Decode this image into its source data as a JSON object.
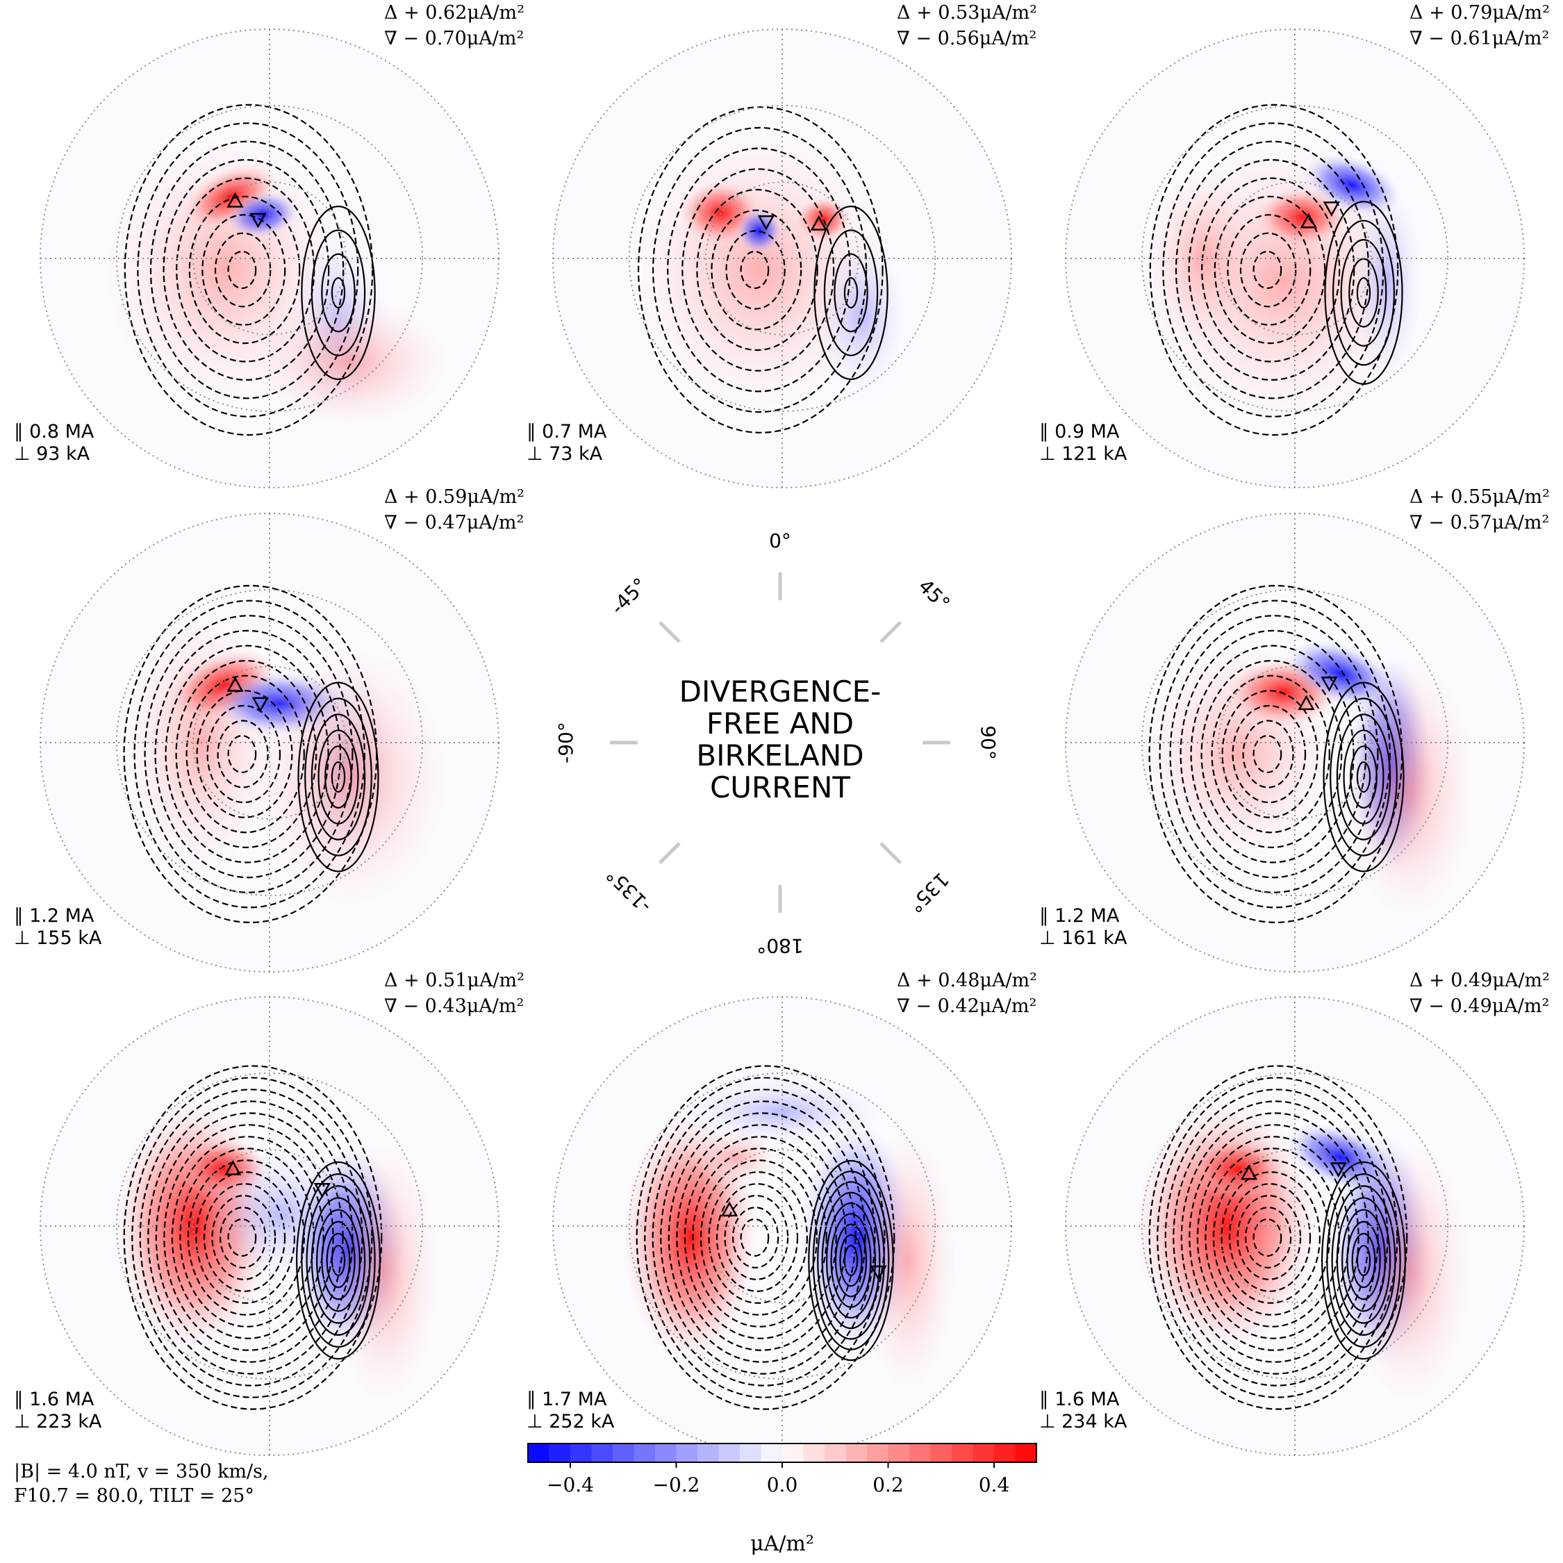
{
  "chart_data": {
    "type": "polar-contour-panels",
    "title": "DIVERGENCE-FREE AND BIRKELAND CURRENT",
    "title_lines": [
      "DIVERGENCE-",
      "FREE AND",
      "BIRKELAND",
      "CURRENT"
    ],
    "direction_labels": [
      "0°",
      "45°",
      "90°",
      "135°",
      "180°",
      "-135°",
      "-90°",
      "-45°"
    ],
    "panels": [
      {
        "max_label": "Δ + 0.62μA/m²",
        "min_label": "∇ − 0.70μA/m²",
        "parallel": "∥ 0.8 MA",
        "perp": "⊥ 93 kA",
        "max_value": 0.62,
        "min_value": -0.7,
        "total_parallel_MA": 0.8,
        "total_perp_kA": 93
      },
      {
        "max_label": "Δ + 0.53μA/m²",
        "min_label": "∇ − 0.56μA/m²",
        "parallel": "∥ 0.7 MA",
        "perp": "⊥ 73 kA",
        "max_value": 0.53,
        "min_value": -0.56,
        "total_parallel_MA": 0.7,
        "total_perp_kA": 73
      },
      {
        "max_label": "Δ + 0.79μA/m²",
        "min_label": "∇ − 0.61μA/m²",
        "parallel": "∥ 0.9 MA",
        "perp": "⊥ 121 kA",
        "max_value": 0.79,
        "min_value": -0.61,
        "total_parallel_MA": 0.9,
        "total_perp_kA": 121
      },
      {
        "max_label": "Δ + 0.59μA/m²",
        "min_label": "∇ − 0.47μA/m²",
        "parallel": "∥ 1.2 MA",
        "perp": "⊥ 155 kA",
        "max_value": 0.59,
        "min_value": -0.47,
        "total_parallel_MA": 1.2,
        "total_perp_kA": 155
      },
      {
        "max_label": "Δ + 0.55μA/m²",
        "min_label": "∇ − 0.57μA/m²",
        "parallel": "∥ 1.2 MA",
        "perp": "⊥ 161 kA",
        "max_value": 0.55,
        "min_value": -0.57,
        "total_parallel_MA": 1.2,
        "total_perp_kA": 161
      },
      {
        "max_label": "Δ + 0.51μA/m²",
        "min_label": "∇ − 0.43μA/m²",
        "parallel": "∥ 1.6 MA",
        "perp": "⊥ 223 kA",
        "max_value": 0.51,
        "min_value": -0.43,
        "total_parallel_MA": 1.6,
        "total_perp_kA": 223
      },
      {
        "max_label": "Δ + 0.48μA/m²",
        "min_label": "∇ − 0.42μA/m²",
        "parallel": "∥ 1.7 MA",
        "perp": "⊥ 252 kA",
        "max_value": 0.48,
        "min_value": -0.42,
        "total_parallel_MA": 1.7,
        "total_perp_kA": 252
      },
      {
        "max_label": "Δ + 0.49μA/m²",
        "min_label": "∇ − 0.49μA/m²",
        "parallel": "∥ 1.6 MA",
        "perp": "⊥ 234 kA",
        "max_value": 0.49,
        "min_value": -0.49,
        "total_parallel_MA": 1.6,
        "total_perp_kA": 234
      }
    ],
    "colorbar": {
      "range": [
        -0.48,
        0.48
      ],
      "ticks": [
        -0.4,
        -0.2,
        0.0,
        0.2,
        0.4
      ],
      "tick_labels": [
        "−0.4",
        "−0.2",
        "0.0",
        "0.2",
        "0.4"
      ],
      "label": "μA/m²",
      "colormap": "bwr",
      "levels": 24
    },
    "conditions_line1": "|B| = 4.0 nT, v = 350 km/s,",
    "conditions_line2": "F10.7 = 80.0, TILT = 25°",
    "conditions": {
      "B_nT": 4.0,
      "v_kms": 350,
      "F107": 80.0,
      "TILT_deg": 25
    }
  }
}
